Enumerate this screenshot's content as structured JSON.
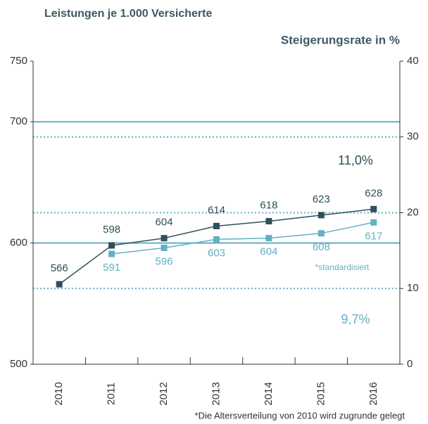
{
  "chart_data": {
    "type": "line",
    "title": "Leistungen je 1.000 Versicherte",
    "y2_label": "Steigerungsrate in %",
    "categories": [
      "2010",
      "2011",
      "2012",
      "2013",
      "2014",
      "2015",
      "2016"
    ],
    "series": [
      {
        "name": "Leistungen",
        "color": "#2f4f59",
        "values": [
          566,
          598,
          604,
          614,
          618,
          623,
          628
        ]
      },
      {
        "name": "*standardisiert",
        "color": "#62afc6",
        "values": [
          null,
          591,
          596,
          603,
          604,
          608,
          617
        ]
      }
    ],
    "ylim": [
      500,
      750
    ],
    "yticks": [
      500,
      600,
      700,
      750
    ],
    "y2lim": [
      0,
      40
    ],
    "y2ticks": [
      0,
      10,
      20,
      30,
      40
    ],
    "grid": true,
    "annotations": [
      "11,0%",
      "9,7%"
    ],
    "footnote": "*Die Altersverteilung von 2010 wird zugrunde gelegt"
  }
}
